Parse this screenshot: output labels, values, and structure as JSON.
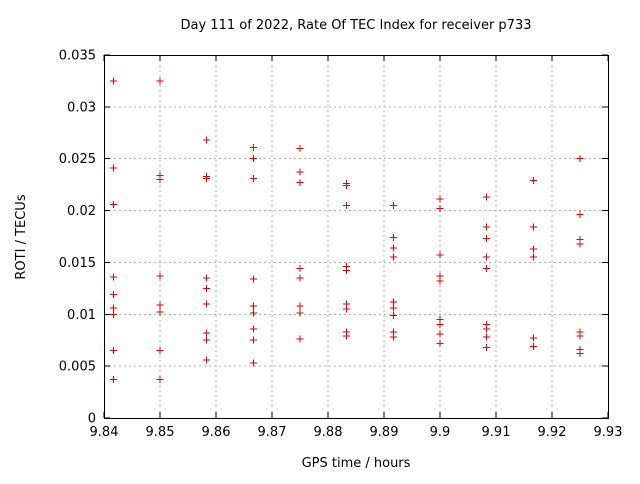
{
  "window": {
    "background": "#ffffff"
  },
  "chart_data": {
    "type": "scatter",
    "title": "Day 111 of 2022, Rate Of TEC Index for receiver p733",
    "xlabel": "GPS time / hours",
    "ylabel": "ROTI / TECUs",
    "xlim": [
      9.84,
      9.93
    ],
    "ylim": [
      0,
      0.035
    ],
    "xticks": [
      9.84,
      9.85,
      9.86,
      9.87,
      9.88,
      9.89,
      9.9,
      9.91,
      9.92,
      9.93
    ],
    "xtick_labels": [
      "9.84",
      "9.85",
      "9.86",
      "9.87",
      "9.88",
      "9.89",
      "9.9",
      "9.91",
      "9.92",
      "9.93"
    ],
    "yticks": [
      0,
      0.005,
      0.01,
      0.015,
      0.02,
      0.025,
      0.03,
      0.035
    ],
    "ytick_labels": [
      "0",
      "0.005",
      "0.01",
      "0.015",
      "0.02",
      "0.025",
      "0.03",
      "0.035"
    ],
    "grid": true,
    "grid_color": "#b0b0b0",
    "border_color": "#000000",
    "legend": "none",
    "marker": {
      "shape": "plus",
      "color": "#ee0000",
      "size": 7
    },
    "series": [
      {
        "name": "ROTI",
        "points": [
          [
            9.8417,
            0.0325
          ],
          [
            9.8417,
            0.0241
          ],
          [
            9.8417,
            0.0206
          ],
          [
            9.8417,
            0.0136
          ],
          [
            9.8417,
            0.0119
          ],
          [
            9.8417,
            0.0106
          ],
          [
            9.8417,
            0.01
          ],
          [
            9.8417,
            0.0065
          ],
          [
            9.8417,
            0.0037
          ],
          [
            9.85,
            0.0325
          ],
          [
            9.85,
            0.0234
          ],
          [
            9.85,
            0.023
          ],
          [
            9.85,
            0.0137
          ],
          [
            9.85,
            0.0109
          ],
          [
            9.85,
            0.0102
          ],
          [
            9.85,
            0.0065
          ],
          [
            9.85,
            0.0037
          ],
          [
            9.8583,
            0.0268
          ],
          [
            9.8583,
            0.0233
          ],
          [
            9.8583,
            0.0231
          ],
          [
            9.8583,
            0.0135
          ],
          [
            9.8583,
            0.0125
          ],
          [
            9.8583,
            0.011
          ],
          [
            9.8583,
            0.0082
          ],
          [
            9.8583,
            0.0075
          ],
          [
            9.8583,
            0.0056
          ],
          [
            9.8667,
            0.0261
          ],
          [
            9.8667,
            0.025
          ],
          [
            9.8667,
            0.0231
          ],
          [
            9.8667,
            0.0134
          ],
          [
            9.8667,
            0.0108
          ],
          [
            9.8667,
            0.0101
          ],
          [
            9.8667,
            0.0086
          ],
          [
            9.8667,
            0.0075
          ],
          [
            9.8667,
            0.0053
          ],
          [
            9.875,
            0.026
          ],
          [
            9.875,
            0.0237
          ],
          [
            9.875,
            0.0227
          ],
          [
            9.875,
            0.0144
          ],
          [
            9.875,
            0.0135
          ],
          [
            9.875,
            0.0108
          ],
          [
            9.875,
            0.0101
          ],
          [
            9.875,
            0.0076
          ],
          [
            9.8833,
            0.0226
          ],
          [
            9.8833,
            0.0224
          ],
          [
            9.8833,
            0.0205
          ],
          [
            9.8833,
            0.0146
          ],
          [
            9.8833,
            0.0142
          ],
          [
            9.8833,
            0.011
          ],
          [
            9.8833,
            0.0105
          ],
          [
            9.8833,
            0.0083
          ],
          [
            9.8833,
            0.0079
          ],
          [
            9.8917,
            0.0205
          ],
          [
            9.8917,
            0.0174
          ],
          [
            9.8917,
            0.0164
          ],
          [
            9.8917,
            0.0155
          ],
          [
            9.8917,
            0.0112
          ],
          [
            9.8917,
            0.0106
          ],
          [
            9.8917,
            0.0099
          ],
          [
            9.8917,
            0.0083
          ],
          [
            9.8917,
            0.0078
          ],
          [
            9.9,
            0.0211
          ],
          [
            9.9,
            0.0202
          ],
          [
            9.9,
            0.0157
          ],
          [
            9.9,
            0.0137
          ],
          [
            9.9,
            0.0132
          ],
          [
            9.9,
            0.0095
          ],
          [
            9.9,
            0.009
          ],
          [
            9.9,
            0.0081
          ],
          [
            9.9,
            0.0072
          ],
          [
            9.9083,
            0.0213
          ],
          [
            9.9083,
            0.0184
          ],
          [
            9.9083,
            0.0173
          ],
          [
            9.9083,
            0.0155
          ],
          [
            9.9083,
            0.0144
          ],
          [
            9.9083,
            0.009
          ],
          [
            9.9083,
            0.0086
          ],
          [
            9.9083,
            0.0078
          ],
          [
            9.9083,
            0.0068
          ],
          [
            9.9167,
            0.0229
          ],
          [
            9.9167,
            0.0184
          ],
          [
            9.9167,
            0.0163
          ],
          [
            9.9167,
            0.0155
          ],
          [
            9.9167,
            0.0077
          ],
          [
            9.9167,
            0.0069
          ],
          [
            9.925,
            0.025
          ],
          [
            9.925,
            0.0196
          ],
          [
            9.925,
            0.0172
          ],
          [
            9.925,
            0.0168
          ],
          [
            9.925,
            0.0083
          ],
          [
            9.925,
            0.0079
          ],
          [
            9.925,
            0.0066
          ],
          [
            9.925,
            0.0062
          ]
        ]
      }
    ]
  }
}
